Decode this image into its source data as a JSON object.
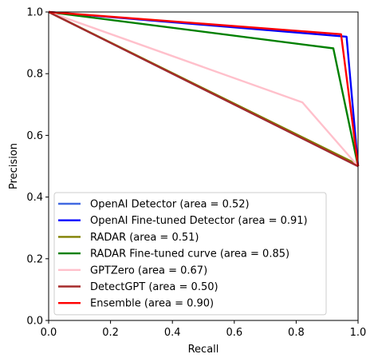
{
  "chart_data": {
    "type": "line",
    "title": "",
    "xlabel": "Recall",
    "ylabel": "Precision",
    "xlim": [
      0,
      1
    ],
    "ylim": [
      0,
      1
    ],
    "xticks": [
      "0.0",
      "0.2",
      "0.4",
      "0.6",
      "0.8",
      "1.0"
    ],
    "yticks": [
      "0.0",
      "0.2",
      "0.4",
      "0.6",
      "0.8",
      "1.0"
    ],
    "grid": false,
    "legend_position": "lower-left",
    "series": [
      {
        "name": "OpenAI Detector (area = 0.52)",
        "color": "#4169e1",
        "x": [
          0,
          1,
          1
        ],
        "y": [
          1,
          0.5,
          0.5
        ]
      },
      {
        "name": "OpenAI Fine-tuned Detector (area = 0.91)",
        "color": "#0000ff",
        "x": [
          0,
          0.963,
          1,
          1
        ],
        "y": [
          1,
          0.92,
          0.5,
          0.5
        ]
      },
      {
        "name": "RADAR (area = 0.51)",
        "color": "#808000",
        "x": [
          0,
          1,
          1
        ],
        "y": [
          1,
          0.505,
          0.5
        ]
      },
      {
        "name": "RADAR Fine-tuned curve (area = 0.85)",
        "color": "#008000",
        "x": [
          0,
          0.92,
          1,
          1
        ],
        "y": [
          1,
          0.882,
          0.5,
          0.5
        ]
      },
      {
        "name": "GPTZero (area = 0.67)",
        "color": "#ffc0cb",
        "x": [
          0,
          0.82,
          1,
          1
        ],
        "y": [
          1,
          0.707,
          0.5,
          0.5
        ]
      },
      {
        "name": "DetectGPT (area = 0.50)",
        "color": "#a52a2a",
        "x": [
          0,
          1,
          1
        ],
        "y": [
          1,
          0.5,
          0.5
        ]
      },
      {
        "name": "Ensemble (area = 0.90)",
        "color": "#ff0000",
        "x": [
          0,
          0.945,
          1,
          1
        ],
        "y": [
          1,
          0.928,
          0.5,
          0.5
        ]
      }
    ]
  }
}
